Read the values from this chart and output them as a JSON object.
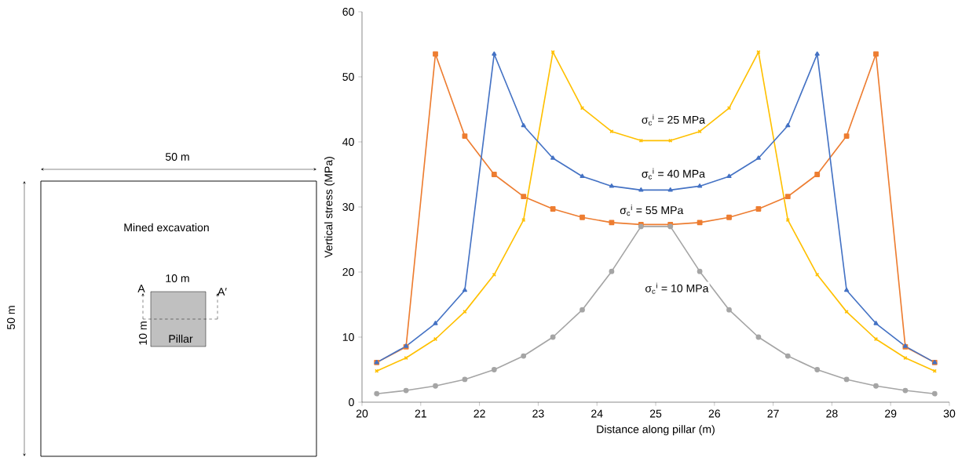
{
  "chart_data": {
    "type": "line",
    "xlabel": "Distance along pillar (m)",
    "ylabel": "Vertical stress (MPa)",
    "x": [
      20.25,
      20.75,
      21.25,
      21.75,
      22.25,
      22.75,
      23.25,
      23.75,
      24.25,
      24.75,
      25.25,
      25.75,
      26.25,
      26.75,
      27.25,
      27.75,
      28.25,
      28.75,
      29.25,
      29.75
    ],
    "series": [
      {
        "name": "σ$_{c}$$^{i}$ = 25 MPa",
        "color": "#ffc000",
        "marker": "cross",
        "values": [
          4.8,
          6.8,
          9.7,
          13.9,
          19.6,
          28.0,
          53.8,
          45.2,
          41.6,
          40.2,
          40.2,
          41.6,
          45.2,
          53.8,
          28.0,
          19.6,
          13.9,
          9.7,
          6.8,
          4.8
        ]
      },
      {
        "name": "σ$_{c}$$^{i}$ = 40 MPa",
        "color": "#4472c4",
        "marker": "triangle",
        "values": [
          6.1,
          8.6,
          12.1,
          17.2,
          53.5,
          42.5,
          37.5,
          34.7,
          33.2,
          32.6,
          32.6,
          33.2,
          34.7,
          37.5,
          42.5,
          53.5,
          17.2,
          12.1,
          8.6,
          6.1
        ]
      },
      {
        "name": "σ$_{c}$$^{i}$ = 55 MPa",
        "color": "#ed7d31",
        "marker": "square",
        "values": [
          6.1,
          8.5,
          53.5,
          40.9,
          35.0,
          31.6,
          29.7,
          28.4,
          27.6,
          27.3,
          27.3,
          27.6,
          28.4,
          29.7,
          31.6,
          35.0,
          40.9,
          53.5,
          8.5,
          6.1
        ]
      },
      {
        "name": "σ$_{c}$$^{i}$ = 10 MPa",
        "color": "#a5a5a5",
        "marker": "circle",
        "values": [
          1.3,
          1.8,
          2.5,
          3.5,
          5.0,
          7.1,
          10.0,
          14.2,
          20.1,
          27.0,
          27.0,
          20.1,
          14.2,
          10.0,
          7.1,
          5.0,
          3.5,
          2.5,
          1.8,
          1.3
        ]
      }
    ],
    "xlim": [
      20,
      30
    ],
    "xticks": [
      20,
      21,
      22,
      23,
      24,
      25,
      26,
      27,
      28,
      29,
      30
    ],
    "ylim": [
      0,
      60
    ],
    "yticks": [
      0,
      10,
      20,
      30,
      40,
      50,
      60
    ],
    "annotations": [
      "50 m",
      "50 m",
      "Mined excavation",
      "10 m",
      "10 m",
      "Pillar",
      "A",
      "A′"
    ]
  }
}
